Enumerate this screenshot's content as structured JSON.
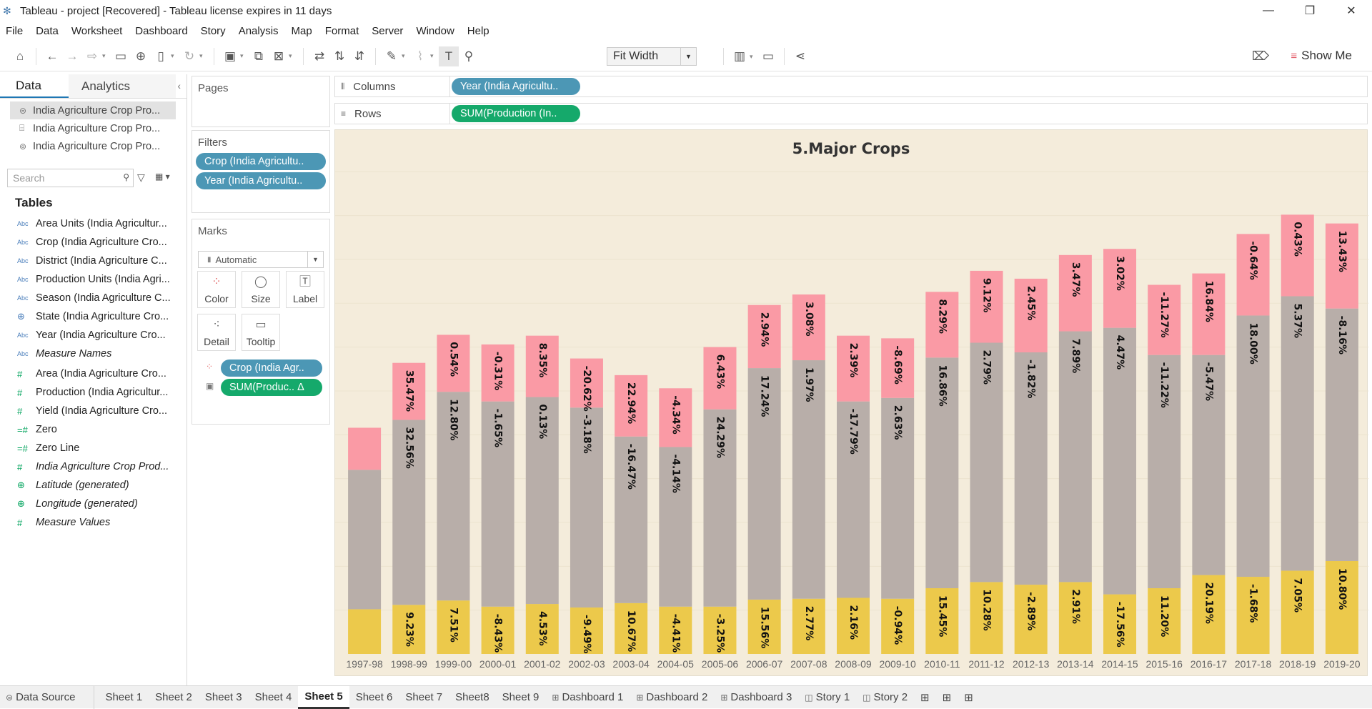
{
  "window": {
    "title": "Tableau - project [Recovered] - Tableau license expires in 11 days"
  },
  "menu": [
    "File",
    "Data",
    "Worksheet",
    "Dashboard",
    "Story",
    "Analysis",
    "Map",
    "Format",
    "Server",
    "Window",
    "Help"
  ],
  "toolbar": {
    "fit": "Fit Width",
    "show_me": "Show Me"
  },
  "data_pane": {
    "tab_data": "Data",
    "tab_analytics": "Analytics",
    "sources": [
      "India Agriculture Crop Pro...",
      "India Agriculture Crop Pro...",
      "India Agriculture Crop Pro..."
    ],
    "search_placeholder": "Search",
    "tables_header": "Tables",
    "fields": [
      {
        "name": "Area Units (India Agricultur...",
        "type": "Abc"
      },
      {
        "name": "Crop (India Agriculture Cro...",
        "type": "Abc"
      },
      {
        "name": "District (India Agriculture C...",
        "type": "Abc"
      },
      {
        "name": "Production Units (India Agri...",
        "type": "Abc"
      },
      {
        "name": "Season (India Agriculture C...",
        "type": "Abc"
      },
      {
        "name": "State (India Agriculture Cro...",
        "type": "geo"
      },
      {
        "name": "Year (India Agriculture Cro...",
        "type": "Abc"
      },
      {
        "name": "Measure Names",
        "type": "Abc",
        "italic": true
      },
      {
        "name": "Area (India Agriculture Cro...",
        "type": "#"
      },
      {
        "name": "Production (India Agricultur...",
        "type": "#"
      },
      {
        "name": "Yield (India Agriculture Cro...",
        "type": "#"
      },
      {
        "name": "Zero",
        "type": "=#"
      },
      {
        "name": "Zero Line",
        "type": "=#"
      },
      {
        "name": "India Agriculture Crop Prod...",
        "type": "#",
        "italic": true
      },
      {
        "name": "Latitude (generated)",
        "type": "geo",
        "italic": true
      },
      {
        "name": "Longitude (generated)",
        "type": "geo",
        "italic": true
      },
      {
        "name": "Measure Values",
        "type": "#",
        "italic": true
      }
    ]
  },
  "pages": {
    "label": "Pages"
  },
  "filters": {
    "label": "Filters",
    "pills": [
      "Crop (India Agricultu..",
      "Year (India Agricultu.."
    ]
  },
  "marks": {
    "label": "Marks",
    "type": "Automatic",
    "buttons": [
      "Color",
      "Size",
      "Label",
      "Detail",
      "Tooltip"
    ],
    "pills": [
      "Crop (India Agr..",
      "SUM(Produc.. Δ"
    ]
  },
  "shelves": {
    "columns_label": "Columns",
    "columns_pill": "Year (India Agricultu..",
    "rows_label": "Rows",
    "rows_pill": "SUM(Production (In.."
  },
  "chart_data": {
    "type": "bar",
    "stacked": true,
    "title": "5.Major Crops",
    "categories": [
      "1997-98",
      "1998-99",
      "1999-00",
      "2000-01",
      "2001-02",
      "2002-03",
      "2003-04",
      "2004-05",
      "2005-06",
      "2006-07",
      "2007-08",
      "2008-09",
      "2009-10",
      "2010-11",
      "2011-12",
      "2012-13",
      "2013-14",
      "2014-15",
      "2015-16",
      "2016-17",
      "2017-18",
      "2018-19",
      "2019-20"
    ],
    "colors": [
      "#ecc94b",
      "#b8aea9",
      "#fa9aa5"
    ],
    "series": [
      {
        "values": [
          51,
          56,
          61,
          54,
          57,
          53,
          58,
          54,
          54,
          62,
          63,
          64,
          63,
          75,
          82,
          79,
          82,
          68,
          75,
          90,
          88,
          95,
          106
        ],
        "labels": [
          "",
          "9.23%",
          "7.51%",
          "-8.43%",
          "4.53%",
          "-9.49%",
          "10.67%",
          "-4.41%",
          "-3.25%",
          "15.56%",
          "2.77%",
          "2.16%",
          "-0.94%",
          "15.45%",
          "10.28%",
          "-2.89%",
          "2.91%",
          "-17.56%",
          "11.20%",
          "20.19%",
          "-1.68%",
          "7.05%",
          "10.80%"
        ]
      },
      {
        "values": [
          159,
          211,
          238,
          234,
          236,
          228,
          190,
          182,
          225,
          264,
          272,
          224,
          229,
          263,
          273,
          265,
          286,
          304,
          266,
          251,
          298,
          313,
          288
        ],
        "labels": [
          "",
          "32.56%",
          "12.80%",
          "-1.65%",
          "0.13%",
          "-3.18%",
          "-16.47%",
          "-4.14%",
          "24.29%",
          "17.24%",
          "1.97%",
          "-17.79%",
          "2.63%",
          "16.86%",
          "2.79%",
          "-1.82%",
          "7.89%",
          "4.47%",
          "-11.22%",
          "-5.47%",
          "18.00%",
          "5.37%",
          "-8.16%"
        ]
      },
      {
        "values": [
          48,
          65,
          65,
          65,
          70,
          56,
          70,
          67,
          71,
          72,
          75,
          75,
          68,
          75,
          82,
          84,
          87,
          90,
          80,
          93,
          93,
          93,
          97
        ],
        "labels": [
          "",
          "35.47%",
          "0.54%",
          "-0.31%",
          "8.35%",
          "-20.62%",
          "22.94%",
          "-4.34%",
          "6.43%",
          "2.94%",
          "3.08%",
          "2.39%",
          "-8.69%",
          "8.29%",
          "9.12%",
          "2.45%",
          "3.47%",
          "3.02%",
          "-11.27%",
          "16.84%",
          "-0.64%",
          "0.43%",
          "13.43%"
        ]
      }
    ],
    "ylim": [
      0,
      560
    ],
    "grid": true
  },
  "sheet_tabs": [
    {
      "label": "Data Source",
      "kind": "ds"
    },
    {
      "label": "Sheet 1",
      "kind": "sheet"
    },
    {
      "label": "Sheet 2",
      "kind": "sheet"
    },
    {
      "label": "Sheet 3",
      "kind": "sheet"
    },
    {
      "label": "Sheet 4",
      "kind": "sheet"
    },
    {
      "label": "Sheet 5",
      "kind": "sheet",
      "active": true
    },
    {
      "label": "Sheet 6",
      "kind": "sheet"
    },
    {
      "label": "Sheet 7",
      "kind": "sheet"
    },
    {
      "label": "Sheet8",
      "kind": "sheet"
    },
    {
      "label": "Sheet 9",
      "kind": "sheet"
    },
    {
      "label": "Dashboard 1",
      "kind": "dash"
    },
    {
      "label": "Dashboard 2",
      "kind": "dash"
    },
    {
      "label": "Dashboard 3",
      "kind": "dash"
    },
    {
      "label": "Story 1",
      "kind": "story"
    },
    {
      "label": "Story 2",
      "kind": "story"
    }
  ]
}
